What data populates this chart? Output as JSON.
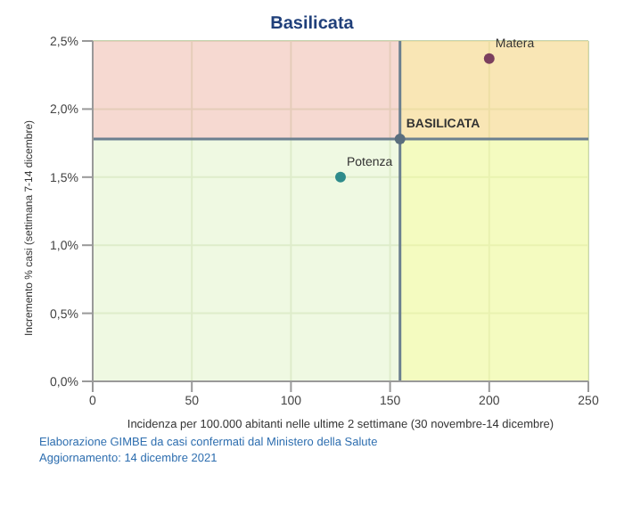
{
  "chart_data": {
    "type": "scatter",
    "title": "Basilicata",
    "xlabel": "Incidenza per 100.000 abitanti nelle ultime 2 settimane (30 novembre-14 dicembre)",
    "ylabel": "Incremento % casi (settimana 7-14 dicembre)",
    "series": [
      {
        "name": "Matera",
        "color": "#7b3f5e",
        "x": [
          200
        ],
        "values": [
          2.37
        ]
      },
      {
        "name": "Potenza",
        "color": "#2e8b8b",
        "x": [
          125
        ],
        "values": [
          1.5
        ]
      },
      {
        "name": "BASILICATA",
        "color": "#5a6e7e",
        "x": [
          155
        ],
        "values": [
          1.78
        ]
      }
    ],
    "xlim": [
      0,
      250
    ],
    "xticks": [
      0,
      50,
      100,
      150,
      200,
      250
    ],
    "ylim": [
      0,
      2.5
    ],
    "yticks": [
      {
        "value": 0,
        "label": "0,0%"
      },
      {
        "value": 0.5,
        "label": "0,5%"
      },
      {
        "value": 1,
        "label": "1,0%"
      },
      {
        "value": 1.5,
        "label": "1,5%"
      },
      {
        "value": 2,
        "label": "2,0%"
      },
      {
        "value": 2.5,
        "label": "2,5%"
      }
    ],
    "grid": true,
    "marker": "circle",
    "ref_lines": [
      {
        "axis": "x",
        "value": 155,
        "color": "#6b7f8f"
      },
      {
        "axis": "y",
        "value": 1.78,
        "color": "#6b7f8f"
      }
    ],
    "bands": [
      {
        "axis": "y",
        "from": 1.78,
        "to": 2.5,
        "color": "#f2c9bd"
      },
      {
        "axis": "y",
        "from": 0,
        "to": 1.78,
        "color": "#e8f6d6"
      },
      {
        "axis": "x",
        "from": 155,
        "to": 250,
        "color": "#ffff80"
      }
    ],
    "annotations": [
      "Elaborazione GIMBE da casi confermati dal Ministero della Salute",
      "Aggiornamento: 14 dicembre 2021"
    ]
  }
}
